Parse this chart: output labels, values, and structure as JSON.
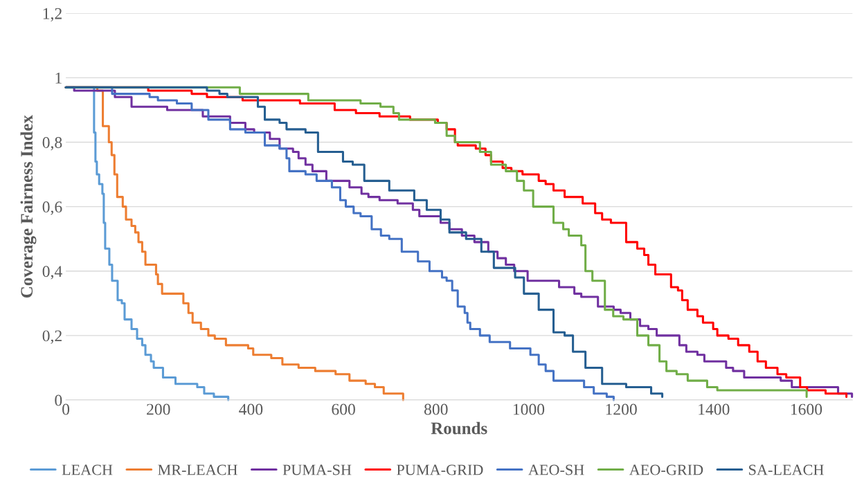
{
  "chart_data": {
    "type": "step",
    "xlabel": "Rounds",
    "ylabel": "Coverage Fairness Index",
    "xlim": [
      0,
      1700
    ],
    "xticks": [
      0,
      200,
      400,
      600,
      800,
      1000,
      1200,
      1400,
      1600
    ],
    "ylim": [
      0,
      1.2
    ],
    "yticks": [
      0,
      {
        "value": 0.2,
        "label": "0,2"
      },
      {
        "value": 0.4,
        "label": "0,4"
      },
      {
        "value": 0.6,
        "label": "0,6"
      },
      {
        "value": 0.8,
        "label": "0,8"
      },
      1,
      {
        "value": 1.2,
        "label": "1,2"
      }
    ],
    "grid": "y",
    "legend": "bottom",
    "line_style": "solid",
    "marker": "none",
    "series": [
      {
        "name": "LEACH",
        "color": "#5b9bd5",
        "x": [
          0,
          61,
          64,
          67,
          72,
          79,
          82,
          85,
          94,
          100,
          112,
          121,
          127,
          142,
          154,
          165,
          172,
          184,
          190,
          210,
          237,
          284,
          299,
          320,
          351
        ],
        "values": [
          0.97,
          0.83,
          0.74,
          0.7,
          0.67,
          0.64,
          0.55,
          0.47,
          0.42,
          0.37,
          0.31,
          0.3,
          0.25,
          0.22,
          0.19,
          0.17,
          0.14,
          0.12,
          0.1,
          0.07,
          0.05,
          0.04,
          0.02,
          0.01,
          0
        ]
      },
      {
        "name": "MR-LEACH",
        "color": "#ed7d31",
        "x": [
          0,
          68,
          80,
          93,
          99,
          105,
          111,
          123,
          130,
          142,
          150,
          157,
          165,
          172,
          195,
          199,
          208,
          254,
          265,
          274,
          292,
          308,
          322,
          346,
          394,
          405,
          444,
          468,
          503,
          539,
          583,
          613,
          648,
          668,
          687,
          729
        ],
        "values": [
          0.97,
          0.96,
          0.85,
          0.8,
          0.76,
          0.7,
          0.63,
          0.6,
          0.56,
          0.54,
          0.52,
          0.49,
          0.46,
          0.42,
          0.39,
          0.36,
          0.33,
          0.3,
          0.27,
          0.24,
          0.22,
          0.2,
          0.19,
          0.17,
          0.16,
          0.14,
          0.13,
          0.11,
          0.1,
          0.09,
          0.08,
          0.06,
          0.05,
          0.04,
          0.02,
          0
        ]
      },
      {
        "name": "PUMA-SH",
        "color": "#7030a0",
        "x": [
          0,
          18,
          106,
          142,
          219,
          296,
          355,
          388,
          407,
          441,
          462,
          491,
          503,
          518,
          533,
          563,
          613,
          639,
          654,
          678,
          717,
          750,
          764,
          810,
          829,
          856,
          883,
          913,
          933,
          951,
          969,
          998,
          1066,
          1099,
          1114,
          1150,
          1184,
          1199,
          1220,
          1241,
          1259,
          1277,
          1326,
          1341,
          1365,
          1380,
          1427,
          1442,
          1466,
          1545,
          1569,
          1669,
          1699
        ],
        "values": [
          0.97,
          0.96,
          0.94,
          0.91,
          0.9,
          0.88,
          0.86,
          0.84,
          0.83,
          0.81,
          0.78,
          0.77,
          0.75,
          0.73,
          0.71,
          0.68,
          0.66,
          0.64,
          0.63,
          0.62,
          0.61,
          0.59,
          0.57,
          0.55,
          0.53,
          0.51,
          0.49,
          0.46,
          0.44,
          0.42,
          0.4,
          0.37,
          0.35,
          0.33,
          0.32,
          0.29,
          0.28,
          0.27,
          0.25,
          0.23,
          0.22,
          0.2,
          0.17,
          0.15,
          0.14,
          0.12,
          0.1,
          0.09,
          0.07,
          0.06,
          0.04,
          0.02,
          0.01
        ]
      },
      {
        "name": "PUMA-GRID",
        "color": "#ff0000",
        "x": [
          0,
          178,
          272,
          305,
          382,
          506,
          581,
          627,
          678,
          744,
          804,
          823,
          841,
          847,
          886,
          907,
          919,
          944,
          963,
          987,
          1022,
          1037,
          1054,
          1078,
          1117,
          1144,
          1159,
          1178,
          1211,
          1235,
          1250,
          1259,
          1274,
          1308,
          1323,
          1332,
          1344,
          1365,
          1377,
          1399,
          1408,
          1432,
          1453,
          1477,
          1495,
          1513,
          1538,
          1557,
          1587,
          1602,
          1642,
          1687
        ],
        "values": [
          0.97,
          0.96,
          0.95,
          0.94,
          0.93,
          0.92,
          0.9,
          0.89,
          0.88,
          0.87,
          0.86,
          0.84,
          0.8,
          0.79,
          0.78,
          0.76,
          0.74,
          0.72,
          0.71,
          0.7,
          0.68,
          0.67,
          0.65,
          0.63,
          0.61,
          0.58,
          0.56,
          0.55,
          0.49,
          0.47,
          0.45,
          0.42,
          0.39,
          0.35,
          0.34,
          0.31,
          0.28,
          0.26,
          0.24,
          0.22,
          0.2,
          0.19,
          0.17,
          0.15,
          0.12,
          0.1,
          0.08,
          0.07,
          0.04,
          0.03,
          0.02,
          0.01
        ]
      },
      {
        "name": "AEO-SH",
        "color": "#4472c4",
        "x": [
          0,
          100,
          181,
          199,
          240,
          272,
          308,
          355,
          388,
          430,
          462,
          477,
          483,
          518,
          542,
          575,
          593,
          605,
          622,
          637,
          661,
          681,
          699,
          726,
          761,
          786,
          813,
          823,
          835,
          847,
          862,
          868,
          874,
          895,
          916,
          960,
          1004,
          1022,
          1037,
          1054,
          1120,
          1141,
          1169,
          1184
        ],
        "values": [
          0.97,
          0.95,
          0.94,
          0.93,
          0.92,
          0.9,
          0.87,
          0.84,
          0.83,
          0.79,
          0.78,
          0.75,
          0.71,
          0.7,
          0.68,
          0.66,
          0.62,
          0.6,
          0.58,
          0.57,
          0.53,
          0.51,
          0.5,
          0.46,
          0.43,
          0.4,
          0.38,
          0.37,
          0.34,
          0.29,
          0.27,
          0.24,
          0.22,
          0.2,
          0.18,
          0.16,
          0.14,
          0.11,
          0.09,
          0.06,
          0.04,
          0.02,
          0.01,
          0
        ]
      },
      {
        "name": "AEO-GRID",
        "color": "#70ad47",
        "x": [
          0,
          376,
          524,
          637,
          680,
          708,
          720,
          798,
          823,
          841,
          895,
          919,
          951,
          975,
          990,
          1010,
          1054,
          1075,
          1087,
          1114,
          1123,
          1138,
          1165,
          1183,
          1205,
          1235,
          1259,
          1283,
          1298,
          1320,
          1344,
          1386,
          1408,
          1601
        ],
        "values": [
          0.97,
          0.95,
          0.93,
          0.92,
          0.91,
          0.89,
          0.87,
          0.86,
          0.82,
          0.8,
          0.77,
          0.73,
          0.71,
          0.68,
          0.65,
          0.6,
          0.55,
          0.53,
          0.51,
          0.48,
          0.4,
          0.37,
          0.28,
          0.26,
          0.25,
          0.2,
          0.17,
          0.12,
          0.09,
          0.08,
          0.06,
          0.04,
          0.03,
          0.01
        ]
      },
      {
        "name": "SA-LEACH",
        "color": "#255e91",
        "x": [
          0,
          305,
          332,
          349,
          415,
          430,
          462,
          477,
          518,
          545,
          599,
          620,
          645,
          699,
          753,
          780,
          810,
          829,
          865,
          898,
          925,
          971,
          990,
          1022,
          1054,
          1078,
          1096,
          1123,
          1159,
          1211,
          1265,
          1289
        ],
        "values": [
          0.97,
          0.96,
          0.95,
          0.94,
          0.91,
          0.87,
          0.86,
          0.84,
          0.83,
          0.77,
          0.74,
          0.73,
          0.68,
          0.65,
          0.62,
          0.59,
          0.56,
          0.52,
          0.5,
          0.46,
          0.41,
          0.38,
          0.33,
          0.28,
          0.21,
          0.2,
          0.15,
          0.1,
          0.05,
          0.04,
          0.02,
          0.01
        ]
      }
    ]
  }
}
